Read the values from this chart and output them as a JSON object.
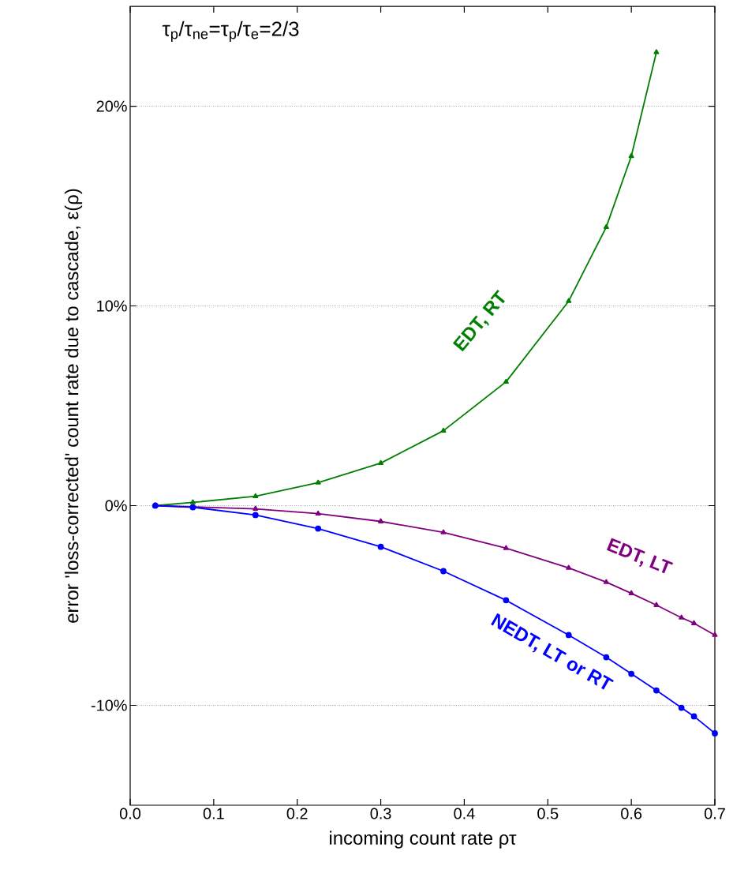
{
  "chart_data": {
    "type": "line",
    "xlabel": "incoming count rate ρτ",
    "ylabel": "error 'loss-corrected' count rate due to cascade, ε(ρ)",
    "annotations": [
      "τ$_{p}$/τ$_{ne}$=τ$_{p}$/τ$_{e}$=2/3"
    ],
    "xlim": [
      0,
      0.7
    ],
    "ylim": [
      -15,
      25
    ],
    "xticks": [
      {
        "value": 0,
        "label": "0.0"
      },
      0.1,
      0.2,
      0.3,
      0.4,
      0.5,
      0.6,
      0.7
    ],
    "yticks": [
      {
        "value": -10,
        "label": "-10%"
      },
      {
        "value": 0,
        "label": "0%"
      },
      {
        "value": 10,
        "label": "10%"
      },
      {
        "value": 20,
        "label": "20%"
      }
    ],
    "grid": "y",
    "line_style": "solid",
    "series": [
      {
        "name": "EDT, RT",
        "color": "#008000",
        "marker": "triangle",
        "x": [
          0.03,
          0.075,
          0.15,
          0.225,
          0.3,
          0.375,
          0.45,
          0.525,
          0.57,
          0.6,
          0.63
        ],
        "values": [
          0,
          0.16,
          0.47,
          1.15,
          2.13,
          3.75,
          6.2,
          10.24,
          13.95,
          17.5,
          22.7
        ]
      },
      {
        "name": "EDT, LT",
        "color": "#800080",
        "marker": "triangle",
        "x": [
          0.03,
          0.075,
          0.15,
          0.225,
          0.3,
          0.375,
          0.45,
          0.525,
          0.57,
          0.6,
          0.63,
          0.66,
          0.675,
          0.7
        ],
        "values": [
          0,
          null,
          -0.16,
          -0.4,
          -0.79,
          -1.34,
          -2.13,
          -3.12,
          -3.83,
          -4.39,
          -4.98,
          -5.61,
          -5.89,
          -6.48
        ]
      },
      {
        "name": "NEDT, LT or RT",
        "color": "#0000ff",
        "marker": "circle",
        "x": [
          0.03,
          0.075,
          0.15,
          0.225,
          0.3,
          0.375,
          0.45,
          0.525,
          0.57,
          0.6,
          0.63,
          0.66,
          0.675,
          0.7
        ],
        "values": [
          0,
          -0.08,
          -0.47,
          -1.15,
          -2.06,
          -3.28,
          -4.74,
          -6.48,
          -7.59,
          -8.42,
          -9.25,
          -10.12,
          -10.55,
          -11.4
        ]
      }
    ]
  }
}
